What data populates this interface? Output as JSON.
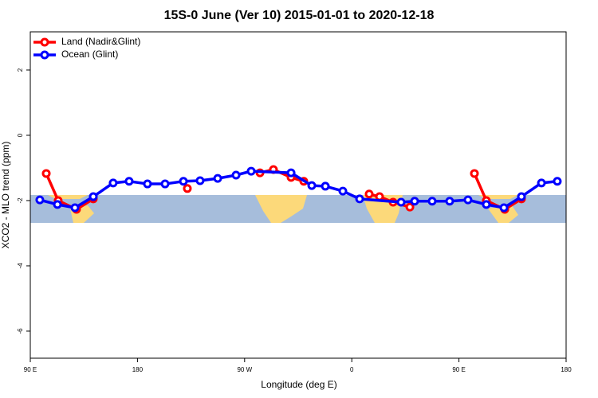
{
  "chart_data": {
    "type": "line",
    "title": "15S-0 June (Ver 10)   2015-01-01 to 2020-12-18",
    "x_label": "Longitude (deg E)",
    "y_label": "XCO2 - MLO trend (ppm)",
    "xlim": [
      90,
      540
    ],
    "ylim": [
      -6.83,
      3.17
    ],
    "xticks": [
      {
        "value": 90,
        "label": "90 E"
      },
      180,
      {
        "value": 270,
        "label": "90 W"
      },
      {
        "value": 360,
        "label": "0"
      },
      {
        "value": 450,
        "label": "90 E"
      },
      {
        "value": 540,
        "label": "180"
      }
    ],
    "yticks": [
      2,
      0,
      -2,
      -4,
      -6
    ],
    "legend": "top-left",
    "series": [
      {
        "name": "Land (Nadir&Glint)",
        "color": "#ff0000",
        "x": [
          103.4,
          113.4,
          128.8,
          142.9,
          null,
          221.9,
          null,
          282.9,
          294.2,
          309.0,
          319.7,
          null,
          374.6,
          383.3,
          394.7,
          408.8,
          null,
          463.0,
          473.0,
          488.5,
          502.5
        ],
        "values": [
          -1.17,
          -2.0,
          -2.27,
          -1.95,
          null,
          -1.63,
          null,
          -1.15,
          -1.05,
          -1.29,
          -1.41,
          null,
          -1.8,
          -1.88,
          -2.05,
          -2.2,
          null,
          -1.17,
          -2.0,
          -2.27,
          -1.95
        ]
      },
      {
        "name": "Ocean (Glint)",
        "color": "#0000ff",
        "x": [
          98.0,
          112.8,
          127.5,
          142.9,
          159.6,
          173.0,
          188.4,
          203.2,
          218.6,
          232.6,
          247.4,
          262.8,
          275.5,
          309.0,
          326.4,
          337.8,
          352.5,
          366.6,
          401.4,
          412.8,
          427.5,
          442.2,
          457.6,
          473.0,
          487.8,
          502.5,
          519.3,
          532.6
        ],
        "values": [
          -1.98,
          -2.12,
          -2.22,
          -1.88,
          -1.46,
          -1.41,
          -1.49,
          -1.49,
          -1.41,
          -1.39,
          -1.32,
          -1.22,
          -1.1,
          -1.15,
          -1.54,
          -1.56,
          -1.71,
          -1.95,
          -2.05,
          -2.02,
          -2.02,
          -2.02,
          -1.98,
          -2.12,
          -2.22,
          -1.88,
          -1.46,
          -1.41
        ]
      }
    ]
  }
}
